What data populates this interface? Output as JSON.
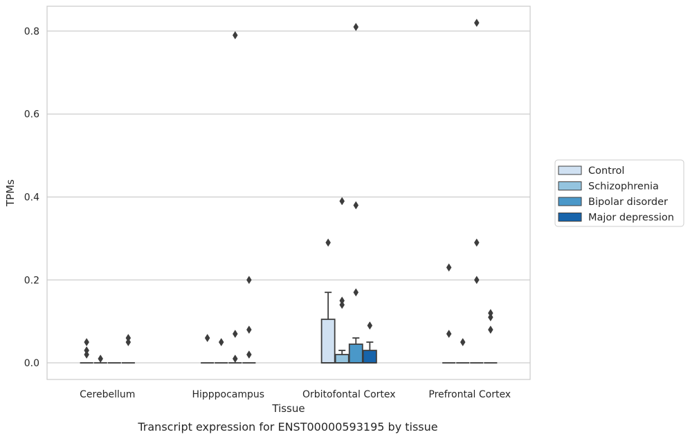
{
  "chart_data": {
    "type": "box",
    "title": "",
    "caption": "Transcript expression for ENST00000593195 by tissue",
    "xlabel": "Tissue",
    "ylabel": "TPMs",
    "ylim": [
      -0.04,
      0.86
    ],
    "yticks": [
      0.0,
      0.2,
      0.4,
      0.6,
      0.8
    ],
    "ytick_labels": [
      "0.0",
      "0.2",
      "0.4",
      "0.6",
      "0.8"
    ],
    "grid": "horizontal",
    "legend_position": "right",
    "categories": [
      "Cerebellum",
      "Hipppocampus",
      "Orbitofontal Cortex",
      "Prefrontal Cortex"
    ],
    "series": [
      {
        "name": "Control",
        "color": "#d0e1f2",
        "boxes": [
          {
            "q1": 0,
            "median": 0,
            "q3": 0,
            "whisker_low": 0,
            "whisker_high": 0,
            "outliers": [
              0.02,
              0.03,
              0.05
            ]
          },
          {
            "q1": 0,
            "median": 0,
            "q3": 0,
            "whisker_low": 0,
            "whisker_high": 0,
            "outliers": [
              0.06
            ]
          },
          {
            "q1": 0,
            "median": 0,
            "q3": 0.105,
            "whisker_low": 0,
            "whisker_high": 0.17,
            "outliers": [
              0.29
            ]
          },
          {
            "q1": 0,
            "median": 0,
            "q3": 0,
            "whisker_low": 0,
            "whisker_high": 0,
            "outliers": [
              0.07,
              0.23
            ]
          }
        ]
      },
      {
        "name": "Schizophrenia",
        "color": "#94c4df",
        "boxes": [
          {
            "q1": 0,
            "median": 0,
            "q3": 0,
            "whisker_low": 0,
            "whisker_high": 0,
            "outliers": [
              0.01
            ]
          },
          {
            "q1": 0,
            "median": 0,
            "q3": 0,
            "whisker_low": 0,
            "whisker_high": 0,
            "outliers": [
              0.05
            ]
          },
          {
            "q1": 0,
            "median": 0,
            "q3": 0.02,
            "whisker_low": 0,
            "whisker_high": 0.03,
            "outliers": [
              0.14,
              0.15,
              0.39
            ]
          },
          {
            "q1": 0,
            "median": 0,
            "q3": 0,
            "whisker_low": 0,
            "whisker_high": 0,
            "outliers": [
              0.05
            ]
          }
        ]
      },
      {
        "name": "Bipolar disorder",
        "color": "#4a98c9",
        "boxes": [
          {
            "q1": 0,
            "median": 0,
            "q3": 0,
            "whisker_low": 0,
            "whisker_high": 0,
            "outliers": []
          },
          {
            "q1": 0,
            "median": 0,
            "q3": 0,
            "whisker_low": 0,
            "whisker_high": 0,
            "outliers": [
              0.01,
              0.07,
              0.79
            ]
          },
          {
            "q1": 0,
            "median": 0,
            "q3": 0.045,
            "whisker_low": 0,
            "whisker_high": 0.06,
            "outliers": [
              0.17,
              0.38,
              0.81
            ]
          },
          {
            "q1": 0,
            "median": 0,
            "q3": 0,
            "whisker_low": 0,
            "whisker_high": 0,
            "outliers": [
              0.2,
              0.29,
              0.82
            ]
          }
        ]
      },
      {
        "name": "Major depression",
        "color": "#1764ab",
        "boxes": [
          {
            "q1": 0,
            "median": 0,
            "q3": 0,
            "whisker_low": 0,
            "whisker_high": 0,
            "outliers": [
              0.05,
              0.06
            ]
          },
          {
            "q1": 0,
            "median": 0,
            "q3": 0,
            "whisker_low": 0,
            "whisker_high": 0,
            "outliers": [
              0.02,
              0.08,
              0.2
            ]
          },
          {
            "q1": 0,
            "median": 0,
            "q3": 0.03,
            "whisker_low": 0,
            "whisker_high": 0.05,
            "outliers": [
              0.09
            ]
          },
          {
            "q1": 0,
            "median": 0,
            "q3": 0,
            "whisker_low": 0,
            "whisker_high": 0,
            "outliers": [
              0.08,
              0.11,
              0.12
            ]
          }
        ]
      }
    ]
  }
}
